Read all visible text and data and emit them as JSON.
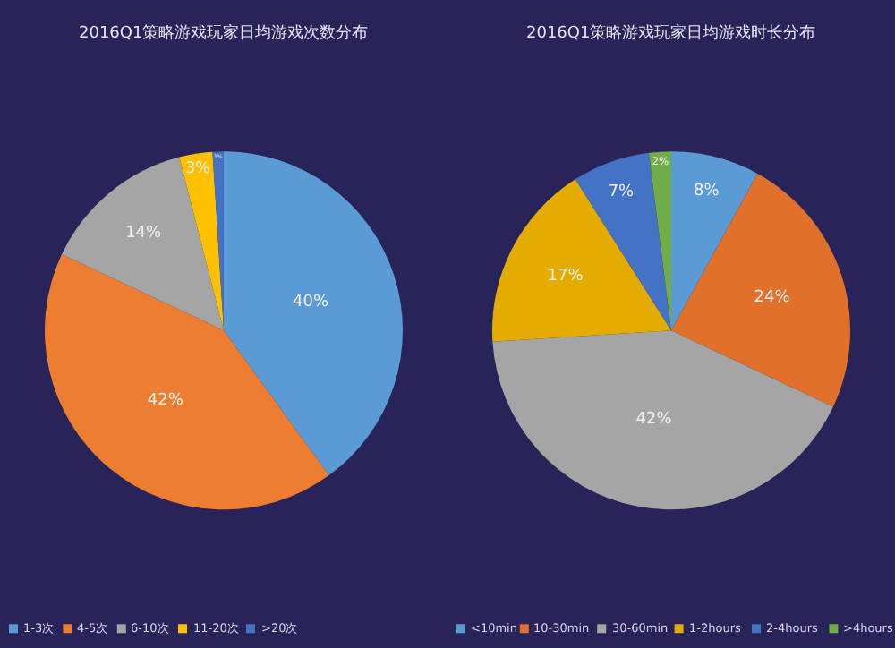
{
  "chart_data": [
    {
      "type": "pie",
      "title": "2016Q1策略游戏玩家日均游戏次数分布",
      "categories": [
        "1-3次",
        "4-5次",
        "6-10次",
        "11-20次",
        ">20次"
      ],
      "values": [
        40,
        42,
        14,
        3,
        1
      ],
      "value_labels": [
        "40%",
        "42%",
        "14%",
        "3%",
        "1%"
      ],
      "colors": [
        "#5b9bd5",
        "#ed7d31",
        "#a5a5a5",
        "#ffc000",
        "#4472c4"
      ],
      "legend": "bottom"
    },
    {
      "type": "pie",
      "title": "2016Q1策略游戏玩家日均游戏时长分布",
      "categories": [
        "<10min",
        "10-30min",
        "30-60min",
        "1-2hours",
        "2-4hours",
        ">4hours"
      ],
      "values": [
        8,
        24,
        42,
        17,
        7,
        2
      ],
      "value_labels": [
        "8%",
        "24%",
        "42%",
        "17%",
        "7%",
        "2%"
      ],
      "colors": [
        "#5b9bd5",
        "#e0702a",
        "#a5a5a5",
        "#e5ac00",
        "#4472c4",
        "#70ad47"
      ],
      "legend": "bottom"
    }
  ]
}
